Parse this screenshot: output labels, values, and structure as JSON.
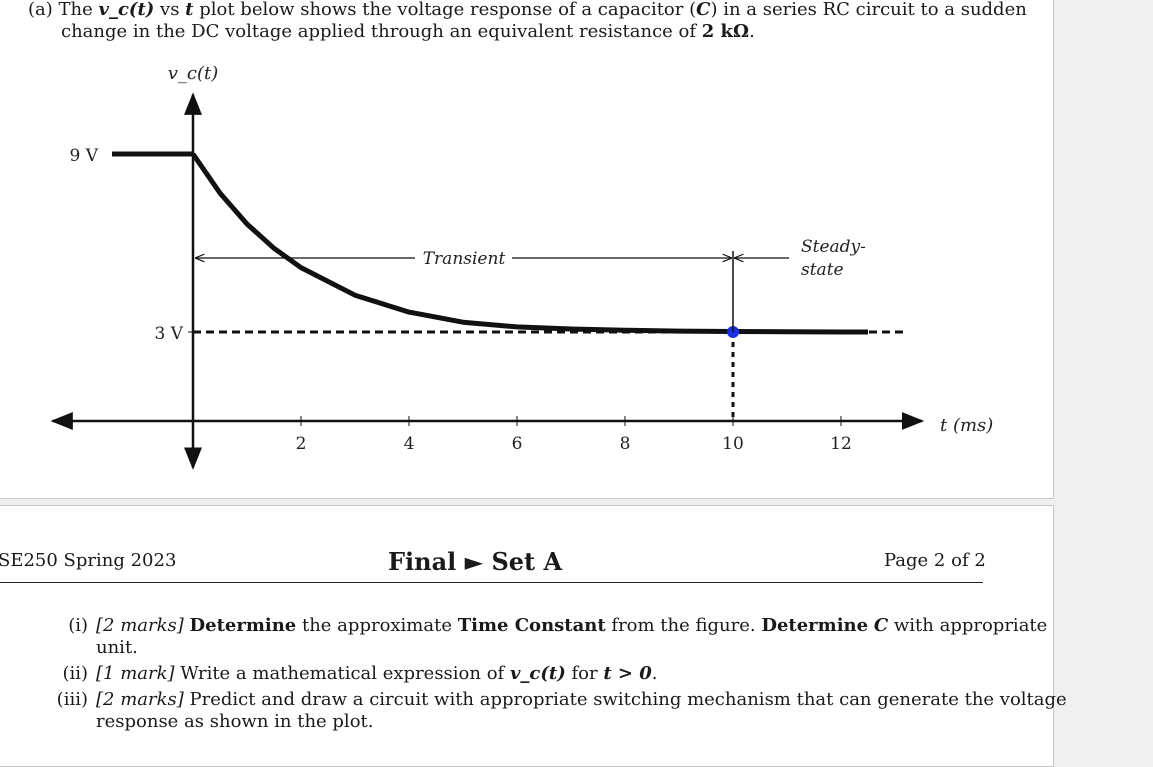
{
  "question": {
    "label": "(a)",
    "line1": {
      "p1": "The",
      "vc": "v_c(t)",
      "p2": "vs",
      "t": "t",
      "p3": "plot below shows the voltage response of a capacitor (",
      "c": "C",
      "p4": ") in a series RC circuit to a sudden"
    },
    "line2": {
      "p1": "change in the DC voltage applied through an equivalent resistance of",
      "r": "2 kΩ",
      "p2": "."
    }
  },
  "chart_data": {
    "type": "line",
    "ylabel": "v_c(t)",
    "xlabel": "t (ms)",
    "xticks": [
      "2",
      "4",
      "6",
      "8",
      "10",
      "12"
    ],
    "ytick_labels": [
      "9 V",
      "3 V"
    ],
    "series": [
      {
        "x": [
          -1.5,
          0
        ],
        "y": [
          9,
          9
        ]
      },
      {
        "x": [
          0,
          0.5,
          1,
          1.5,
          2,
          3,
          4,
          5,
          6,
          7,
          8,
          9,
          10,
          11,
          12,
          12.5
        ],
        "y": [
          9,
          7.68,
          6.64,
          5.82,
          5.17,
          4.24,
          3.67,
          3.33,
          3.17,
          3.1,
          3.06,
          3.03,
          3.015,
          3.005,
          3.0,
          3.0
        ]
      }
    ],
    "annotations": {
      "transient": "Transient",
      "steady_state_1": "Steady-",
      "steady_state_2": "state"
    },
    "marker": {
      "x": 10,
      "y": 3,
      "color": "#1a2ee0"
    },
    "xlim": [
      -2.6,
      13.5
    ],
    "ylim": [
      -1,
      11
    ]
  },
  "footer": {
    "course": "SE250 Spring 2023",
    "title": "Final ► Set A",
    "page": "Page 2 of 2"
  },
  "parts": [
    {
      "num": "(i)",
      "marks": "[2 marks]",
      "seg1": "Determine",
      "seg2": "the approximate",
      "seg3": "Time Constant",
      "seg4": "from the figure.",
      "seg5": "Determine",
      "seg6": "C",
      "seg7": "with appropriate",
      "cont": "unit."
    },
    {
      "num": "(ii)",
      "marks": "[1 mark]",
      "seg1": "Write a mathematical expression of",
      "vc": "v_c(t)",
      "seg2": "for",
      "cond": "t > 0",
      "seg3": "."
    },
    {
      "num": "(iii)",
      "marks": "[2 marks]",
      "seg1": "Predict and draw a circuit with appropriate switching mechanism that can generate the voltage",
      "cont": "response as shown in the plot."
    }
  ]
}
